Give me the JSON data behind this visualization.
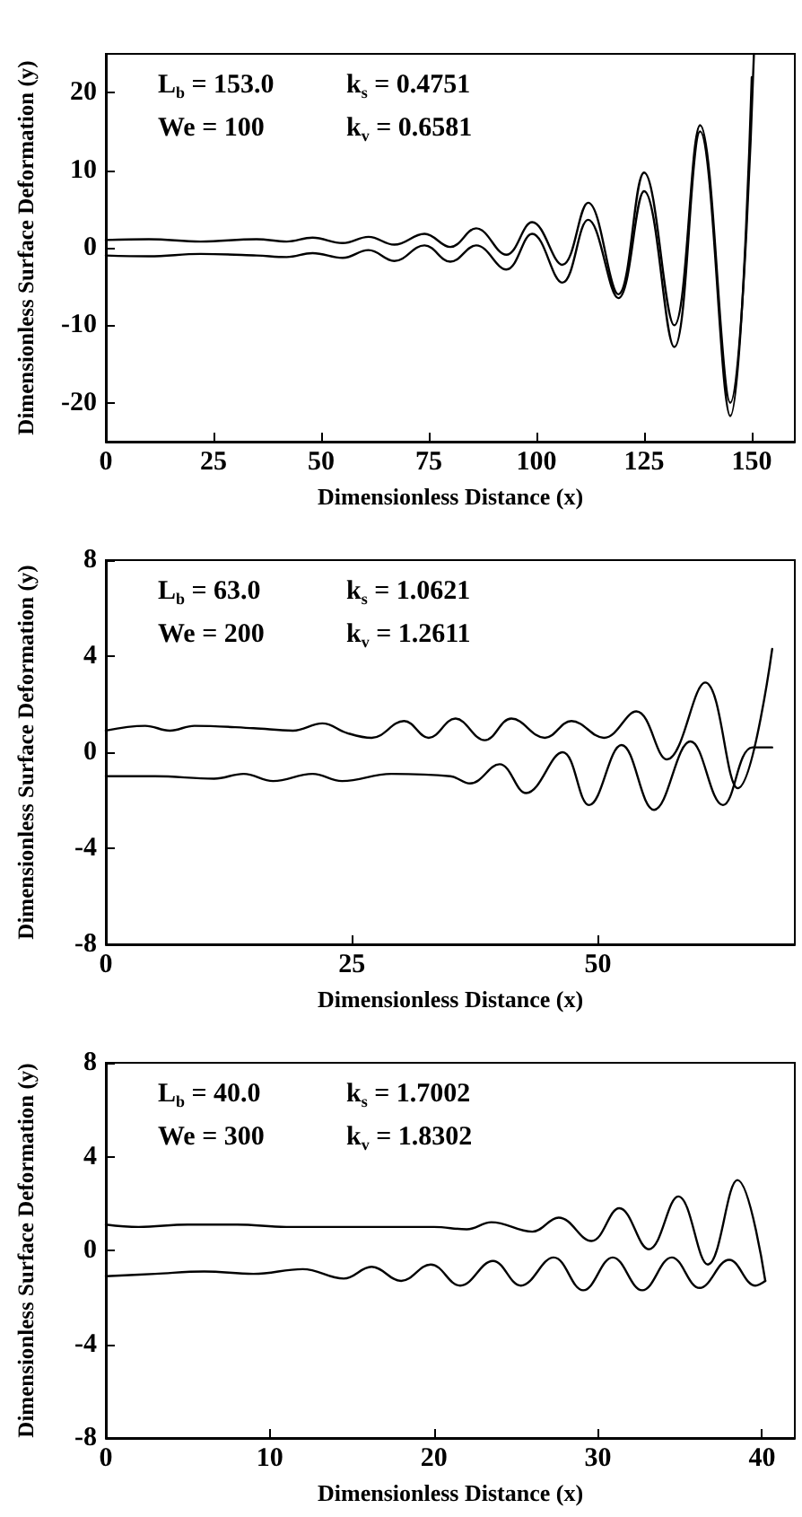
{
  "chart_data": [
    {
      "type": "line",
      "xlabel": "Dimensionless Distance (x)",
      "ylabel": "Dimensionless Surface Deformation (y)",
      "annotations": [
        "L$_{b}$ = 153.0",
        "k$_{s}$ = 0.4751",
        "We = 100",
        "k$_{v}$ = 0.6581"
      ],
      "xlim": [
        0,
        160
      ],
      "xticks": [
        0,
        25,
        50,
        75,
        100,
        125,
        150
      ],
      "ylim": [
        -25,
        25
      ],
      "yticks": [
        -20,
        -10,
        0,
        10,
        20
      ],
      "series": [
        {
          "color": "#000000",
          "x": [
            0,
            10,
            22,
            35,
            42,
            48,
            55,
            61,
            67,
            74,
            80,
            86,
            93,
            99,
            106,
            112,
            119,
            125,
            132,
            138,
            145,
            150.5
          ],
          "values": [
            1,
            1.1,
            0.8,
            1.1,
            0.8,
            1.3,
            0.6,
            1.4,
            0.4,
            1.8,
            0.1,
            2.5,
            -0.9,
            3.3,
            -2.2,
            5.8,
            -6,
            9.7,
            -10,
            15.8,
            -20,
            25
          ]
        },
        {
          "color": "#000000",
          "x": [
            0,
            10,
            22,
            35,
            42,
            48,
            55,
            61,
            67,
            74,
            80,
            86,
            93,
            99,
            106,
            112,
            119,
            125,
            132,
            138,
            145,
            150
          ],
          "values": [
            -1,
            -1.1,
            -0.8,
            -1,
            -1.2,
            -0.7,
            -1.3,
            -0.3,
            -1.7,
            0.3,
            -1.8,
            0.3,
            -2.8,
            1.8,
            -4.5,
            3.6,
            -6.5,
            7.3,
            -12.8,
            15,
            -21.7,
            22
          ]
        }
      ]
    },
    {
      "type": "line",
      "xlabel": "Dimensionless Distance (x)",
      "ylabel": "Dimensionless Surface Deformation (y)",
      "annotations": [
        "L$_{b}$ = 63.0",
        "k$_{s}$ = 1.0621",
        "We = 200",
        "k$_{v}$ = 1.2611"
      ],
      "xlim": [
        0,
        70
      ],
      "xticks": [
        0,
        25,
        50
      ],
      "ylim": [
        -8,
        8
      ],
      "yticks": [
        -8,
        -4,
        0,
        4,
        8
      ],
      "series": [
        {
          "color": "#000000",
          "x": [
            0,
            4,
            6.5,
            9,
            15,
            19,
            22,
            24.5,
            27,
            30.3,
            32.8,
            35.5,
            38.5,
            41.2,
            44.6,
            47.3,
            50.6,
            53.9,
            57,
            60.9,
            64.2,
            67.7
          ],
          "values": [
            0.9,
            1.1,
            0.9,
            1.1,
            1,
            0.9,
            1.2,
            0.8,
            0.6,
            1.3,
            0.6,
            1.4,
            0.5,
            1.4,
            0.6,
            1.3,
            0.6,
            1.7,
            -0.3,
            2.9,
            -1.5,
            4.3
          ]
        },
        {
          "color": "#000000",
          "x": [
            0,
            5,
            11,
            14,
            17,
            21,
            24,
            29,
            35,
            37,
            40,
            42.7,
            46.4,
            49.1,
            52.4,
            55.7,
            59.4,
            62.7,
            65.7,
            67.7
          ],
          "values": [
            -1,
            -1,
            -1.1,
            -0.9,
            -1.2,
            -0.9,
            -1.2,
            -0.9,
            -1,
            -1.3,
            -0.5,
            -1.7,
            0,
            -2.2,
            0.3,
            -2.4,
            0.45,
            -2.2,
            0.2,
            0.2
          ]
        }
      ]
    },
    {
      "type": "line",
      "xlabel": "Dimensionless Distance (x)",
      "ylabel": "Dimensionless Surface Deformation (y)",
      "annotations": [
        "L$_{b}$ = 40.0",
        "k$_{s}$ = 1.7002",
        "We = 300",
        "k$_{v}$ = 1.8302"
      ],
      "xlim": [
        0,
        42
      ],
      "xticks": [
        0,
        10,
        20,
        30,
        40
      ],
      "ylim": [
        -8,
        8
      ],
      "yticks": [
        -8,
        -4,
        0,
        4,
        8
      ],
      "series": [
        {
          "color": "#000000",
          "x": [
            0,
            2,
            5,
            8,
            11,
            15,
            20,
            22,
            23.5,
            26,
            27.6,
            29.6,
            31.3,
            33.1,
            34.9,
            36.7,
            38.5,
            40.2
          ],
          "values": [
            1.1,
            1,
            1.1,
            1.1,
            1,
            1,
            1,
            0.9,
            1.2,
            0.8,
            1.4,
            0.4,
            1.8,
            0.05,
            2.3,
            -0.6,
            3,
            -1.3
          ]
        },
        {
          "color": "#000000",
          "x": [
            0,
            3,
            6,
            9,
            12,
            14.5,
            16.2,
            18,
            19.8,
            21.6,
            23.6,
            25.3,
            27.3,
            29.1,
            30.9,
            32.7,
            34.5,
            36.2,
            38,
            39.6,
            40.2
          ],
          "values": [
            -1.1,
            -1,
            -0.9,
            -1,
            -0.8,
            -1.2,
            -0.7,
            -1.3,
            -0.6,
            -1.5,
            -0.45,
            -1.5,
            -0.3,
            -1.7,
            -0.3,
            -1.7,
            -0.3,
            -1.6,
            -0.4,
            -1.5,
            -1.3
          ]
        }
      ]
    }
  ]
}
